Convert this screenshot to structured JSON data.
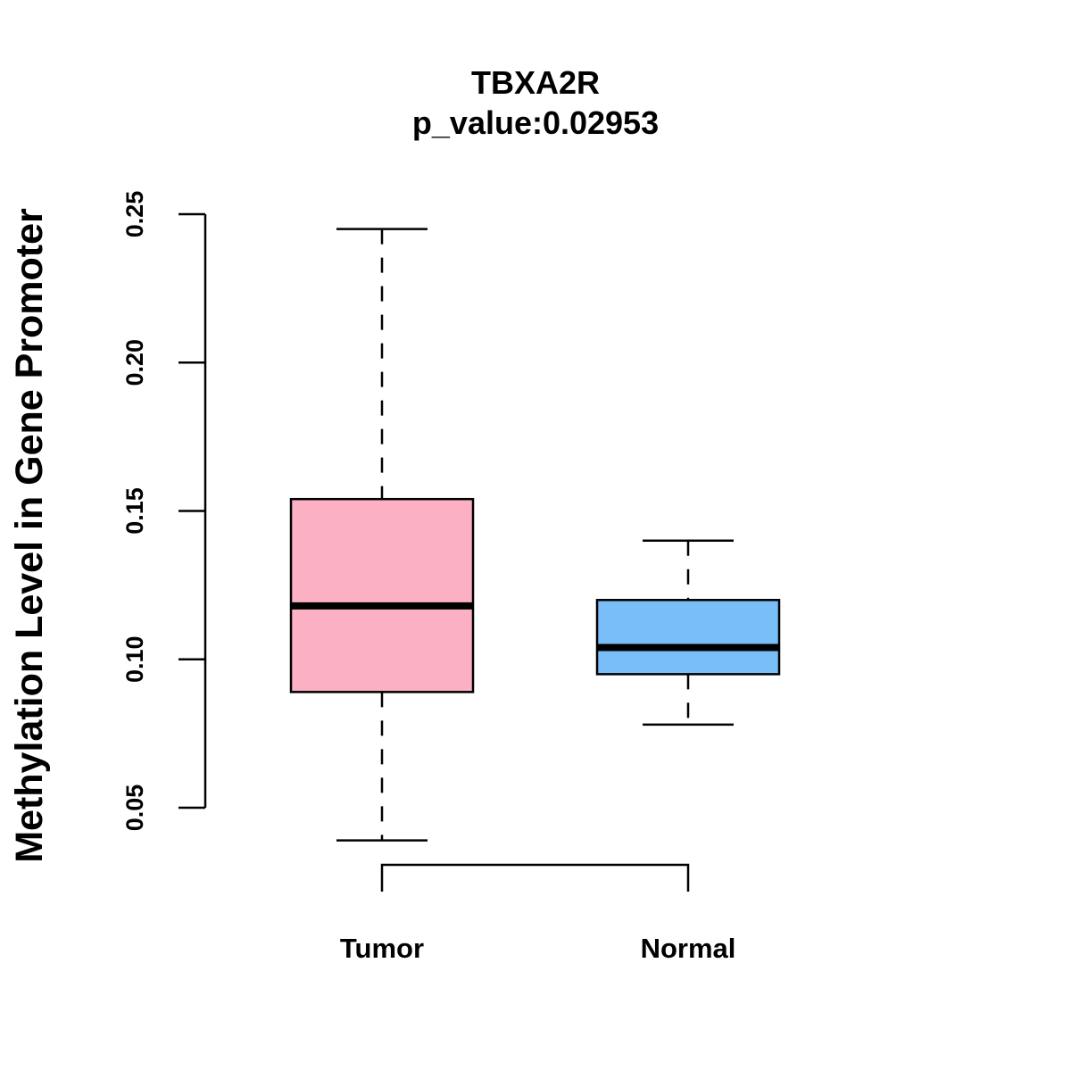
{
  "chart_data": {
    "type": "boxplot",
    "title": "TBXA2R",
    "subtitle": "p_value:0.02953",
    "xlabel": "",
    "ylabel": "Methylation Level in Gene Promoter",
    "ylim": [
      0.05,
      0.25
    ],
    "yticks": [
      {
        "value": 0.05,
        "label": "0.05"
      },
      {
        "value": 0.1,
        "label": "0.10"
      },
      {
        "value": 0.15,
        "label": "0.15"
      },
      {
        "value": 0.2,
        "label": "0.20"
      },
      {
        "value": 0.25,
        "label": "0.25"
      }
    ],
    "categories": [
      "Tumor",
      "Normal"
    ],
    "boxes": [
      {
        "name": "Tumor",
        "whisker_low": 0.039,
        "q1": 0.089,
        "median": 0.118,
        "q3": 0.154,
        "whisker_high": 0.245,
        "color": "#FBB1C3"
      },
      {
        "name": "Normal",
        "whisker_low": 0.078,
        "q1": 0.095,
        "median": 0.104,
        "q3": 0.12,
        "whisker_high": 0.14,
        "color": "#79BEF7"
      }
    ],
    "comparison_bracket": {
      "between": [
        "Tumor",
        "Normal"
      ]
    },
    "grid": false,
    "legend": "none"
  }
}
